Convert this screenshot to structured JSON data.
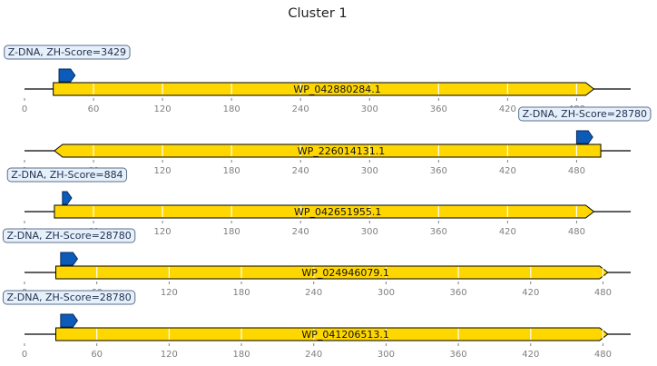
{
  "title": "Cluster 1",
  "colors": {
    "gene_fill": "#ffd700",
    "gene_stroke": "#000000",
    "feature_fill": "#0c5bb8",
    "feature_stroke": "#0a2a5a",
    "box_fill": "#e6f0fa",
    "box_stroke": "#5a6f8c",
    "gridline": "#ffffff",
    "tick_label": "#7f7f7f"
  },
  "tracks": [
    {
      "id": "track-1",
      "gene": {
        "label": "WP_042880284.1",
        "start": 25,
        "end": 495,
        "strand": 1
      },
      "feature": {
        "label": "Z-DNA, ZH-Score=3429",
        "start": 30,
        "end": 44,
        "strand": 1
      },
      "axis": {
        "min": 0,
        "max": 527,
        "ticks": [
          0,
          60,
          120,
          180,
          240,
          300,
          360,
          420,
          480
        ]
      }
    },
    {
      "id": "track-2",
      "gene": {
        "label": "WP_226014131.1",
        "start": 26,
        "end": 501,
        "strand": -1
      },
      "feature": {
        "label": "Z-DNA, ZH-Score=28780",
        "start": 480,
        "end": 494,
        "strand": 1
      },
      "axis": {
        "min": 0,
        "max": 527,
        "ticks": [
          0,
          60,
          120,
          180,
          240,
          300,
          360,
          420,
          480
        ]
      }
    },
    {
      "id": "track-3",
      "gene": {
        "label": "WP_042651955.1",
        "start": 26,
        "end": 495,
        "strand": 1
      },
      "feature": {
        "label": "Z-DNA, ZH-Score=884",
        "start": 33,
        "end": 41,
        "strand": 1
      },
      "axis": {
        "min": 0,
        "max": 527,
        "ticks": [
          0,
          60,
          120,
          180,
          240,
          300,
          360,
          420,
          480
        ]
      }
    },
    {
      "id": "track-4",
      "gene": {
        "label": "WP_024946079.1",
        "start": 26,
        "end": 484,
        "strand": 1
      },
      "feature": {
        "label": "Z-DNA, ZH-Score=28780",
        "start": 30,
        "end": 44,
        "strand": 1
      },
      "axis": {
        "min": 0,
        "max": 503,
        "ticks": [
          0,
          60,
          120,
          180,
          240,
          300,
          360,
          420,
          480
        ]
      }
    },
    {
      "id": "track-5",
      "gene": {
        "label": "WP_041206513.1",
        "start": 26,
        "end": 484,
        "strand": 1
      },
      "feature": {
        "label": "Z-DNA, ZH-Score=28780",
        "start": 30,
        "end": 44,
        "strand": 1
      },
      "axis": {
        "min": 0,
        "max": 503,
        "ticks": [
          0,
          60,
          120,
          180,
          240,
          300,
          360,
          420,
          480
        ]
      }
    }
  ]
}
